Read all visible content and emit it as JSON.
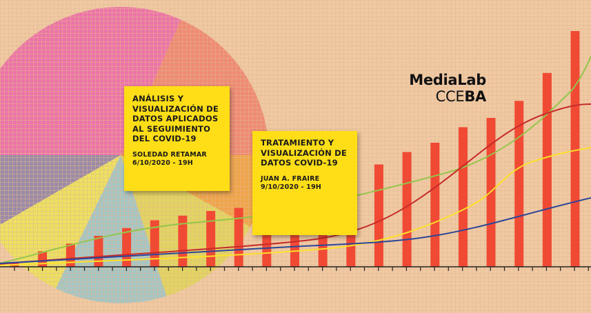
{
  "colors": {
    "background": "#efc9a3",
    "grid": "#e3b68c",
    "card": "#ffdd17",
    "bars": "#f04a34",
    "pie": [
      "#ec74a8",
      "#ef8a75",
      "#f0a54a",
      "#e2d460",
      "#a6c6c6",
      "#ece062",
      "#9b8ba6"
    ],
    "lines": {
      "green": "#93c64a",
      "red": "#c62a2a",
      "yellow": "#ffe12a",
      "blue": "#2b4698"
    }
  },
  "chart_data": {
    "type": "bar",
    "values": [
      3,
      10,
      15,
      20,
      25,
      30,
      33,
      36,
      38,
      40,
      42,
      45,
      57,
      66,
      74,
      80,
      90,
      96,
      107,
      125,
      152
    ],
    "ylim": [
      0,
      160
    ]
  },
  "cards": [
    {
      "title": [
        "ANÁLISIS Y",
        "VISUALIZACIÓN DE",
        "DATOS APLICADOS",
        "AL SEGUIMIENTO",
        "DEL COVID-19"
      ],
      "speaker": "SOLEDAD RETAMAR",
      "date": "6/10/2020 - 19H"
    },
    {
      "title": [
        "TRATAMIENTO Y",
        "VISUALIZACIÓN DE",
        "DATOS COVID-19"
      ],
      "speaker": "JUAN A. FRAIRE",
      "date": "9/10/2020 - 19H"
    }
  ],
  "logo": {
    "line1": "MediaLab",
    "line2_regular": "CCE",
    "line2_bold": "BA"
  }
}
